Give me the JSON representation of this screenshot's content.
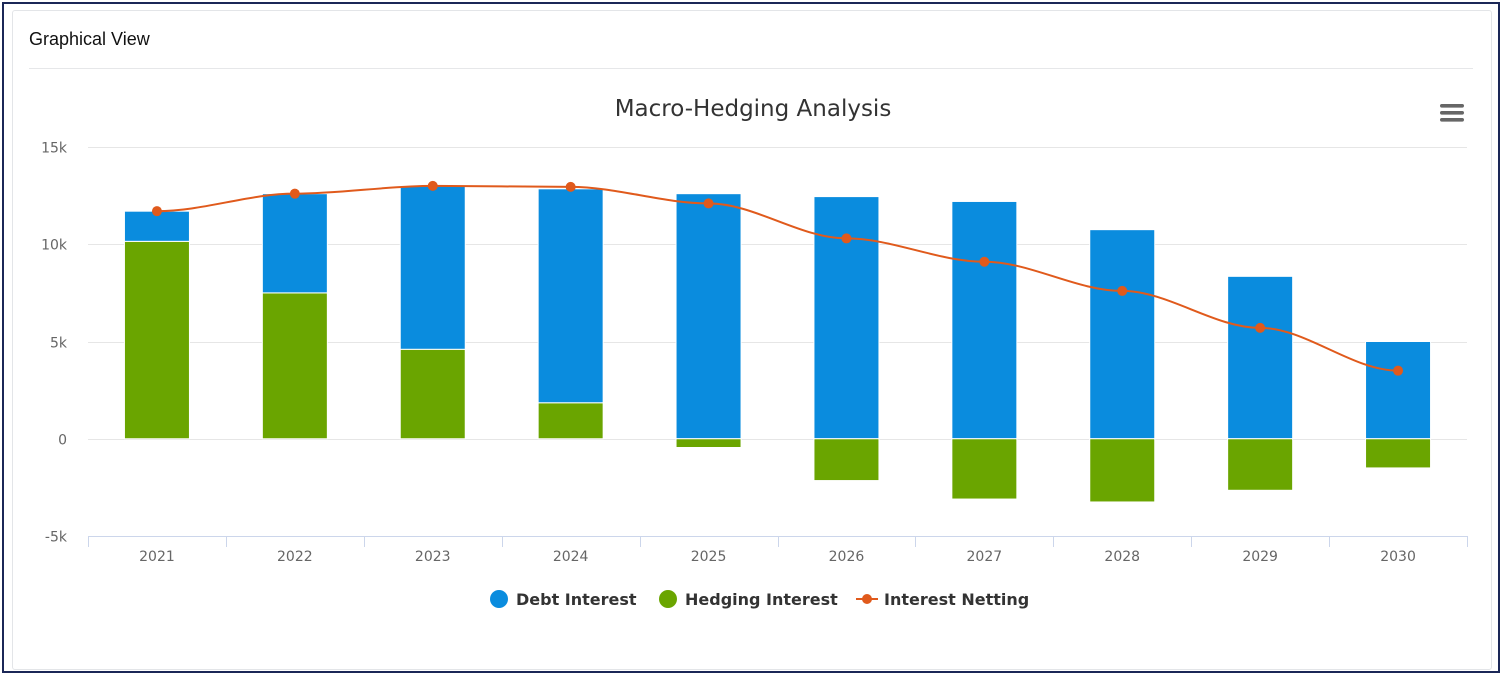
{
  "panel": {
    "title": "Graphical View"
  },
  "chart_data": {
    "type": "bar",
    "title": "Macro-Hedging Analysis",
    "categories": [
      "2021",
      "2022",
      "2023",
      "2024",
      "2025",
      "2026",
      "2027",
      "2028",
      "2029",
      "2030"
    ],
    "series": [
      {
        "name": "Debt Interest",
        "kind": "stacked-bar",
        "color": "#0a8cde",
        "values": [
          1550,
          5100,
          8400,
          11000,
          12600,
          12450,
          12200,
          10750,
          8350,
          5000
        ]
      },
      {
        "name": "Hedging Interest",
        "kind": "stacked-bar",
        "color": "#6aa500",
        "values": [
          10150,
          7500,
          4600,
          1850,
          -450,
          -2150,
          -3100,
          -3250,
          -2650,
          -1500
        ]
      },
      {
        "name": "Interest Netting",
        "kind": "line",
        "color": "#e05a1c",
        "values": [
          11700,
          12600,
          13000,
          12950,
          12100,
          10300,
          9100,
          7600,
          5700,
          3500
        ]
      }
    ],
    "ylim": [
      -5000,
      15000
    ],
    "yticks": [
      {
        "value": -5000,
        "label": "-5k"
      },
      {
        "value": 0,
        "label": "0"
      },
      {
        "value": 5000,
        "label": "5k"
      },
      {
        "value": 10000,
        "label": "10k"
      },
      {
        "value": 15000,
        "label": "15k"
      }
    ],
    "xlabel": "",
    "ylabel": "",
    "grid": true,
    "legend_position": "bottom-center"
  }
}
